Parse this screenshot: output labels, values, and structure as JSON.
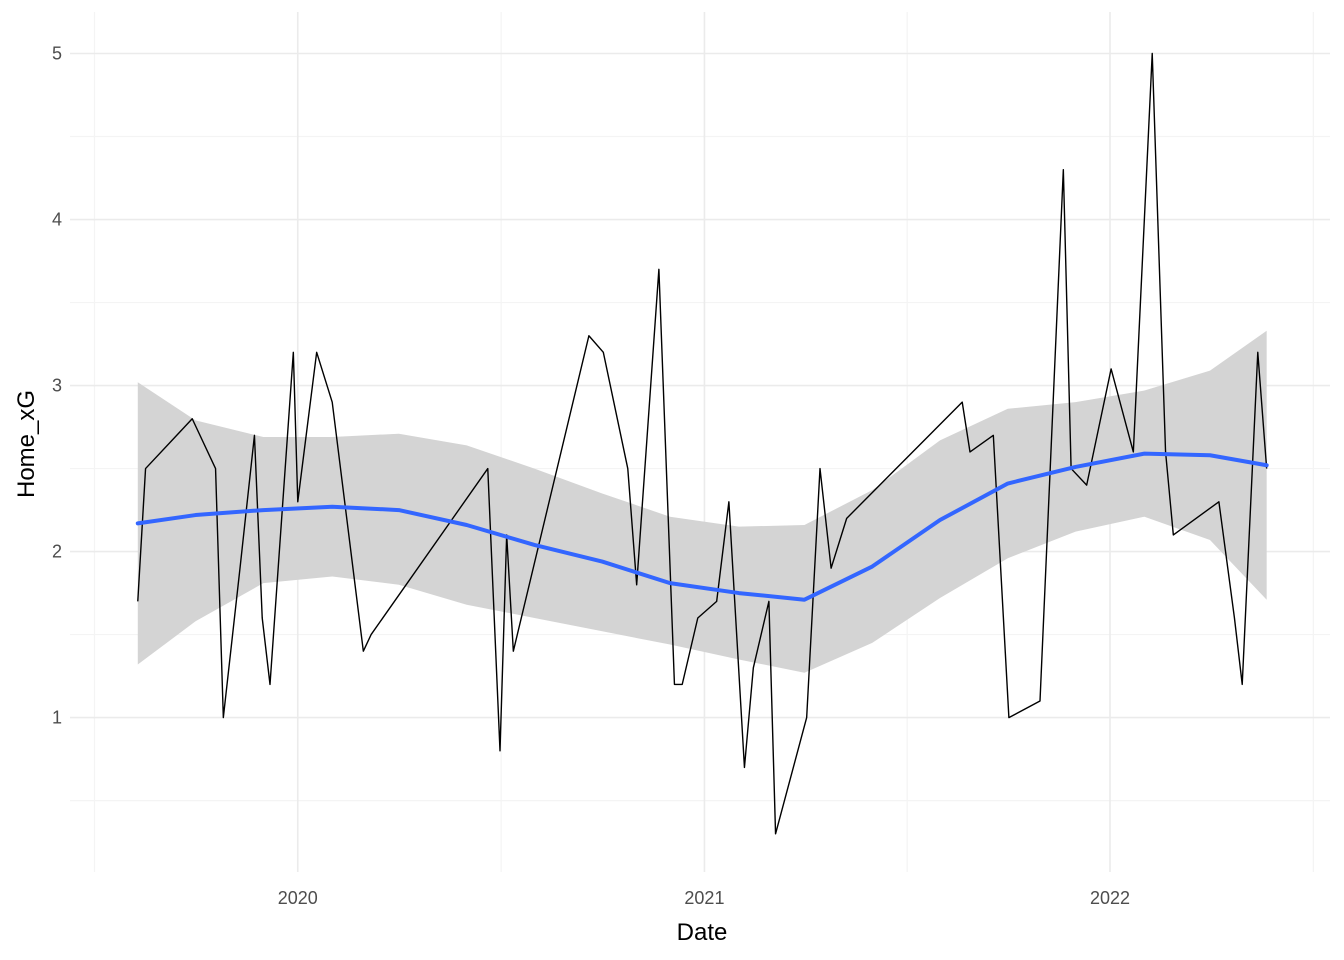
{
  "chart_data": {
    "type": "line",
    "title": "",
    "xlabel": "Date",
    "ylabel": "Home_xG",
    "xlim": [
      "2019-06-10",
      "2022-07-18"
    ],
    "ylim": [
      0.07,
      5.25
    ],
    "x_ticks": [
      "2020-01-01",
      "2021-01-01",
      "2022-01-01"
    ],
    "x_tick_labels": [
      "2020",
      "2021",
      "2022"
    ],
    "y_ticks": [
      1,
      2,
      3,
      4,
      5
    ],
    "y_tick_labels": [
      "1",
      "2",
      "3",
      "4",
      "5"
    ],
    "grid": true,
    "legend": "none",
    "colors": {
      "line": "#000000",
      "smooth": "#3366ff",
      "ribbon": "#d4d4d4",
      "grid_major": "#ebebeb",
      "grid_minor": "#f4f4f4"
    },
    "series": [
      {
        "x": [
          "2019-08-10",
          "2019-08-17",
          "2019-09-14",
          "2019-09-28",
          "2019-10-19",
          "2019-10-26",
          "2019-11-10",
          "2019-11-23",
          "2019-11-30",
          "2019-12-07",
          "2019-12-28",
          "2020-01-01",
          "2020-01-18",
          "2020-02-01",
          "2020-02-29",
          "2020-03-07",
          "2020-06-20",
          "2020-07-01",
          "2020-07-07",
          "2020-07-13",
          "2020-09-19",
          "2020-10-02",
          "2020-10-24",
          "2020-11-01",
          "2020-11-21",
          "2020-12-05",
          "2020-12-12",
          "2020-12-26",
          "2021-01-12",
          "2021-01-23",
          "2021-02-06",
          "2021-02-14",
          "2021-02-28",
          "2021-03-06",
          "2021-04-03",
          "2021-04-15",
          "2021-04-25",
          "2021-05-09",
          "2021-08-21",
          "2021-08-28",
          "2021-09-18",
          "2021-10-02",
          "2021-10-30",
          "2021-11-20",
          "2021-11-27",
          "2021-12-11",
          "2022-01-02",
          "2022-01-22",
          "2022-02-08",
          "2022-02-20",
          "2022-02-27",
          "2022-04-09",
          "2022-04-23",
          "2022-04-30",
          "2022-05-14",
          "2022-05-22"
        ],
        "values": [
          1.7,
          2.5,
          2.7,
          2.8,
          2.5,
          1.0,
          1.9,
          2.7,
          1.6,
          1.2,
          3.2,
          2.3,
          3.2,
          2.9,
          1.4,
          1.5,
          2.5,
          0.8,
          2.1,
          1.4,
          3.3,
          3.2,
          2.5,
          1.8,
          3.7,
          1.2,
          1.2,
          1.6,
          1.7,
          2.3,
          0.7,
          1.3,
          1.7,
          0.3,
          1.0,
          2.5,
          1.9,
          2.2,
          2.9,
          2.6,
          2.7,
          1.0,
          1.1,
          4.3,
          2.5,
          2.4,
          3.1,
          2.6,
          5.0,
          2.6,
          2.1,
          2.3,
          1.6,
          1.2,
          3.2,
          2.5
        ]
      }
    ],
    "smooth": {
      "x": [
        "2019-08-10",
        "2019-10-01",
        "2019-12-01",
        "2020-02-01",
        "2020-04-01",
        "2020-06-01",
        "2020-08-01",
        "2020-10-01",
        "2020-12-01",
        "2021-02-01",
        "2021-04-01",
        "2021-06-01",
        "2021-08-01",
        "2021-10-01",
        "2021-12-01",
        "2022-02-01",
        "2022-04-01",
        "2022-05-22"
      ],
      "y": [
        2.17,
        2.22,
        2.25,
        2.27,
        2.25,
        2.16,
        2.04,
        1.94,
        1.81,
        1.75,
        1.71,
        1.91,
        2.19,
        2.41,
        2.51,
        2.59,
        2.58,
        2.52
      ],
      "lower": [
        1.32,
        1.58,
        1.81,
        1.85,
        1.8,
        1.68,
        1.6,
        1.52,
        1.44,
        1.35,
        1.27,
        1.45,
        1.72,
        1.96,
        2.12,
        2.21,
        2.07,
        1.71
      ],
      "upper": [
        3.02,
        2.79,
        2.69,
        2.69,
        2.71,
        2.64,
        2.5,
        2.35,
        2.21,
        2.15,
        2.16,
        2.37,
        2.67,
        2.86,
        2.9,
        2.97,
        3.09,
        3.33
      ]
    }
  }
}
